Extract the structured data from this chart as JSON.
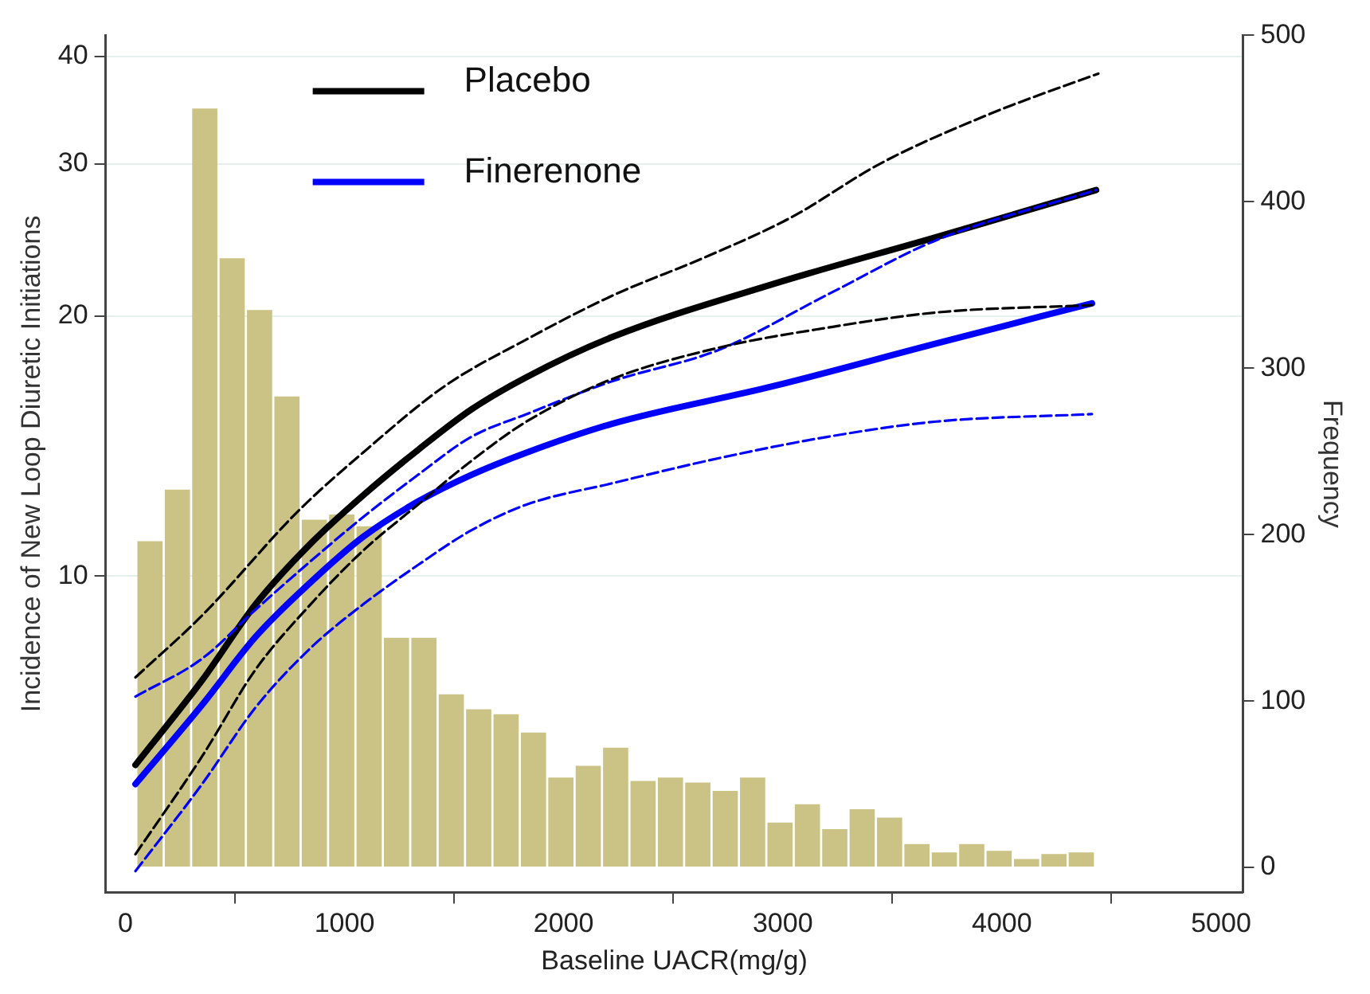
{
  "chart_data": {
    "type": "line",
    "xlabel": "Baseline UACR(mg/g)",
    "ylabel": "Incidence of New Loop Diuretic Initiations",
    "y2label": "Frequency",
    "xlim": [
      -90,
      5100
    ],
    "xticks": [
      0,
      1000,
      2000,
      3000,
      4000,
      5000
    ],
    "ylim": [
      4.3,
      42.3
    ],
    "yticks": [
      10,
      20,
      30,
      40
    ],
    "log": "y",
    "y2lim": [
      -15,
      500
    ],
    "y2ticks": [
      0,
      100,
      200,
      300,
      400,
      500
    ],
    "grid": "y",
    "legend": "top left",
    "marker": "none",
    "series": [
      {
        "type": "histogram",
        "axis": "y2",
        "color": "#cbc385",
        "bins": [
          50,
          175,
          300,
          425,
          550,
          675,
          800,
          925,
          1050,
          1175,
          1300,
          1425,
          1550,
          1675,
          1800,
          1925,
          2050,
          2175,
          2300,
          2425,
          2550,
          2675,
          2800,
          2925,
          3050,
          3175,
          3300,
          3425,
          3550,
          3675,
          3800,
          3925,
          4050,
          4175,
          4300,
          4425
        ],
        "values": [
          196,
          227,
          456,
          366,
          335,
          283,
          209,
          212,
          205,
          138,
          138,
          104,
          95,
          92,
          81,
          54,
          61,
          72,
          52,
          54,
          51,
          46,
          54,
          27,
          38,
          23,
          35,
          30,
          14,
          9,
          14,
          10,
          5,
          8,
          9
        ]
      },
      {
        "name": "Placebo",
        "color": "#000000",
        "line_style": "solid",
        "x": [
          46,
          350,
          594,
          845,
          1085,
          1336,
          1580,
          1831,
          2218,
          2959,
          3702,
          4430
        ],
        "values": [
          6.04,
          7.57,
          9.27,
          10.9,
          12.4,
          14.0,
          15.6,
          17.0,
          18.9,
          21.8,
          24.7,
          28.0
        ]
      },
      {
        "name": "Finerenone",
        "color": "#0000ff",
        "line_style": "solid",
        "x": [
          46,
          350,
          594,
          845,
          1085,
          1336,
          1580,
          1831,
          2218,
          2959,
          3702,
          4411
        ],
        "values": [
          5.74,
          7.09,
          8.5,
          9.83,
          11.1,
          12.2,
          13.1,
          13.9,
          15.0,
          16.6,
          18.6,
          20.7
        ]
      },
      {
        "color": "#000000",
        "line_style": "dashed",
        "x": [
          46,
          350,
          790,
          1085,
          1458,
          1831,
          2218,
          2662,
          3035,
          3451,
          3945,
          4440
        ],
        "values": [
          7.63,
          9.0,
          11.9,
          13.9,
          16.6,
          18.8,
          21.1,
          23.5,
          26.0,
          30.1,
          34.3,
          38.2
        ]
      },
      {
        "color": "#000000",
        "line_style": "dashed",
        "x": [
          46,
          350,
          594,
          845,
          1085,
          1336,
          1580,
          1831,
          2218,
          2713,
          3207,
          3702,
          4411
        ],
        "values": [
          4.76,
          6.18,
          7.79,
          9.27,
          10.7,
          12.1,
          13.6,
          15.1,
          16.9,
          18.4,
          19.4,
          20.2,
          20.6
        ]
      },
      {
        "color": "#0000ff",
        "line_style": "dashed",
        "x": [
          46,
          350,
          594,
          845,
          1085,
          1336,
          1580,
          1831,
          2218,
          2713,
          3207,
          3702,
          4430
        ],
        "values": [
          7.25,
          8.02,
          9.14,
          10.4,
          11.7,
          13.1,
          14.5,
          15.4,
          16.8,
          18.3,
          21.2,
          24.5,
          28.0
        ]
      },
      {
        "color": "#0000ff",
        "line_style": "dashed",
        "x": [
          46,
          350,
          594,
          845,
          1085,
          1336,
          1580,
          1831,
          2218,
          2713,
          3207,
          3702,
          4411
        ],
        "values": [
          4.55,
          5.74,
          7.04,
          8.25,
          9.27,
          10.3,
          11.3,
          12.1,
          12.8,
          13.7,
          14.5,
          15.1,
          15.4
        ]
      }
    ]
  }
}
